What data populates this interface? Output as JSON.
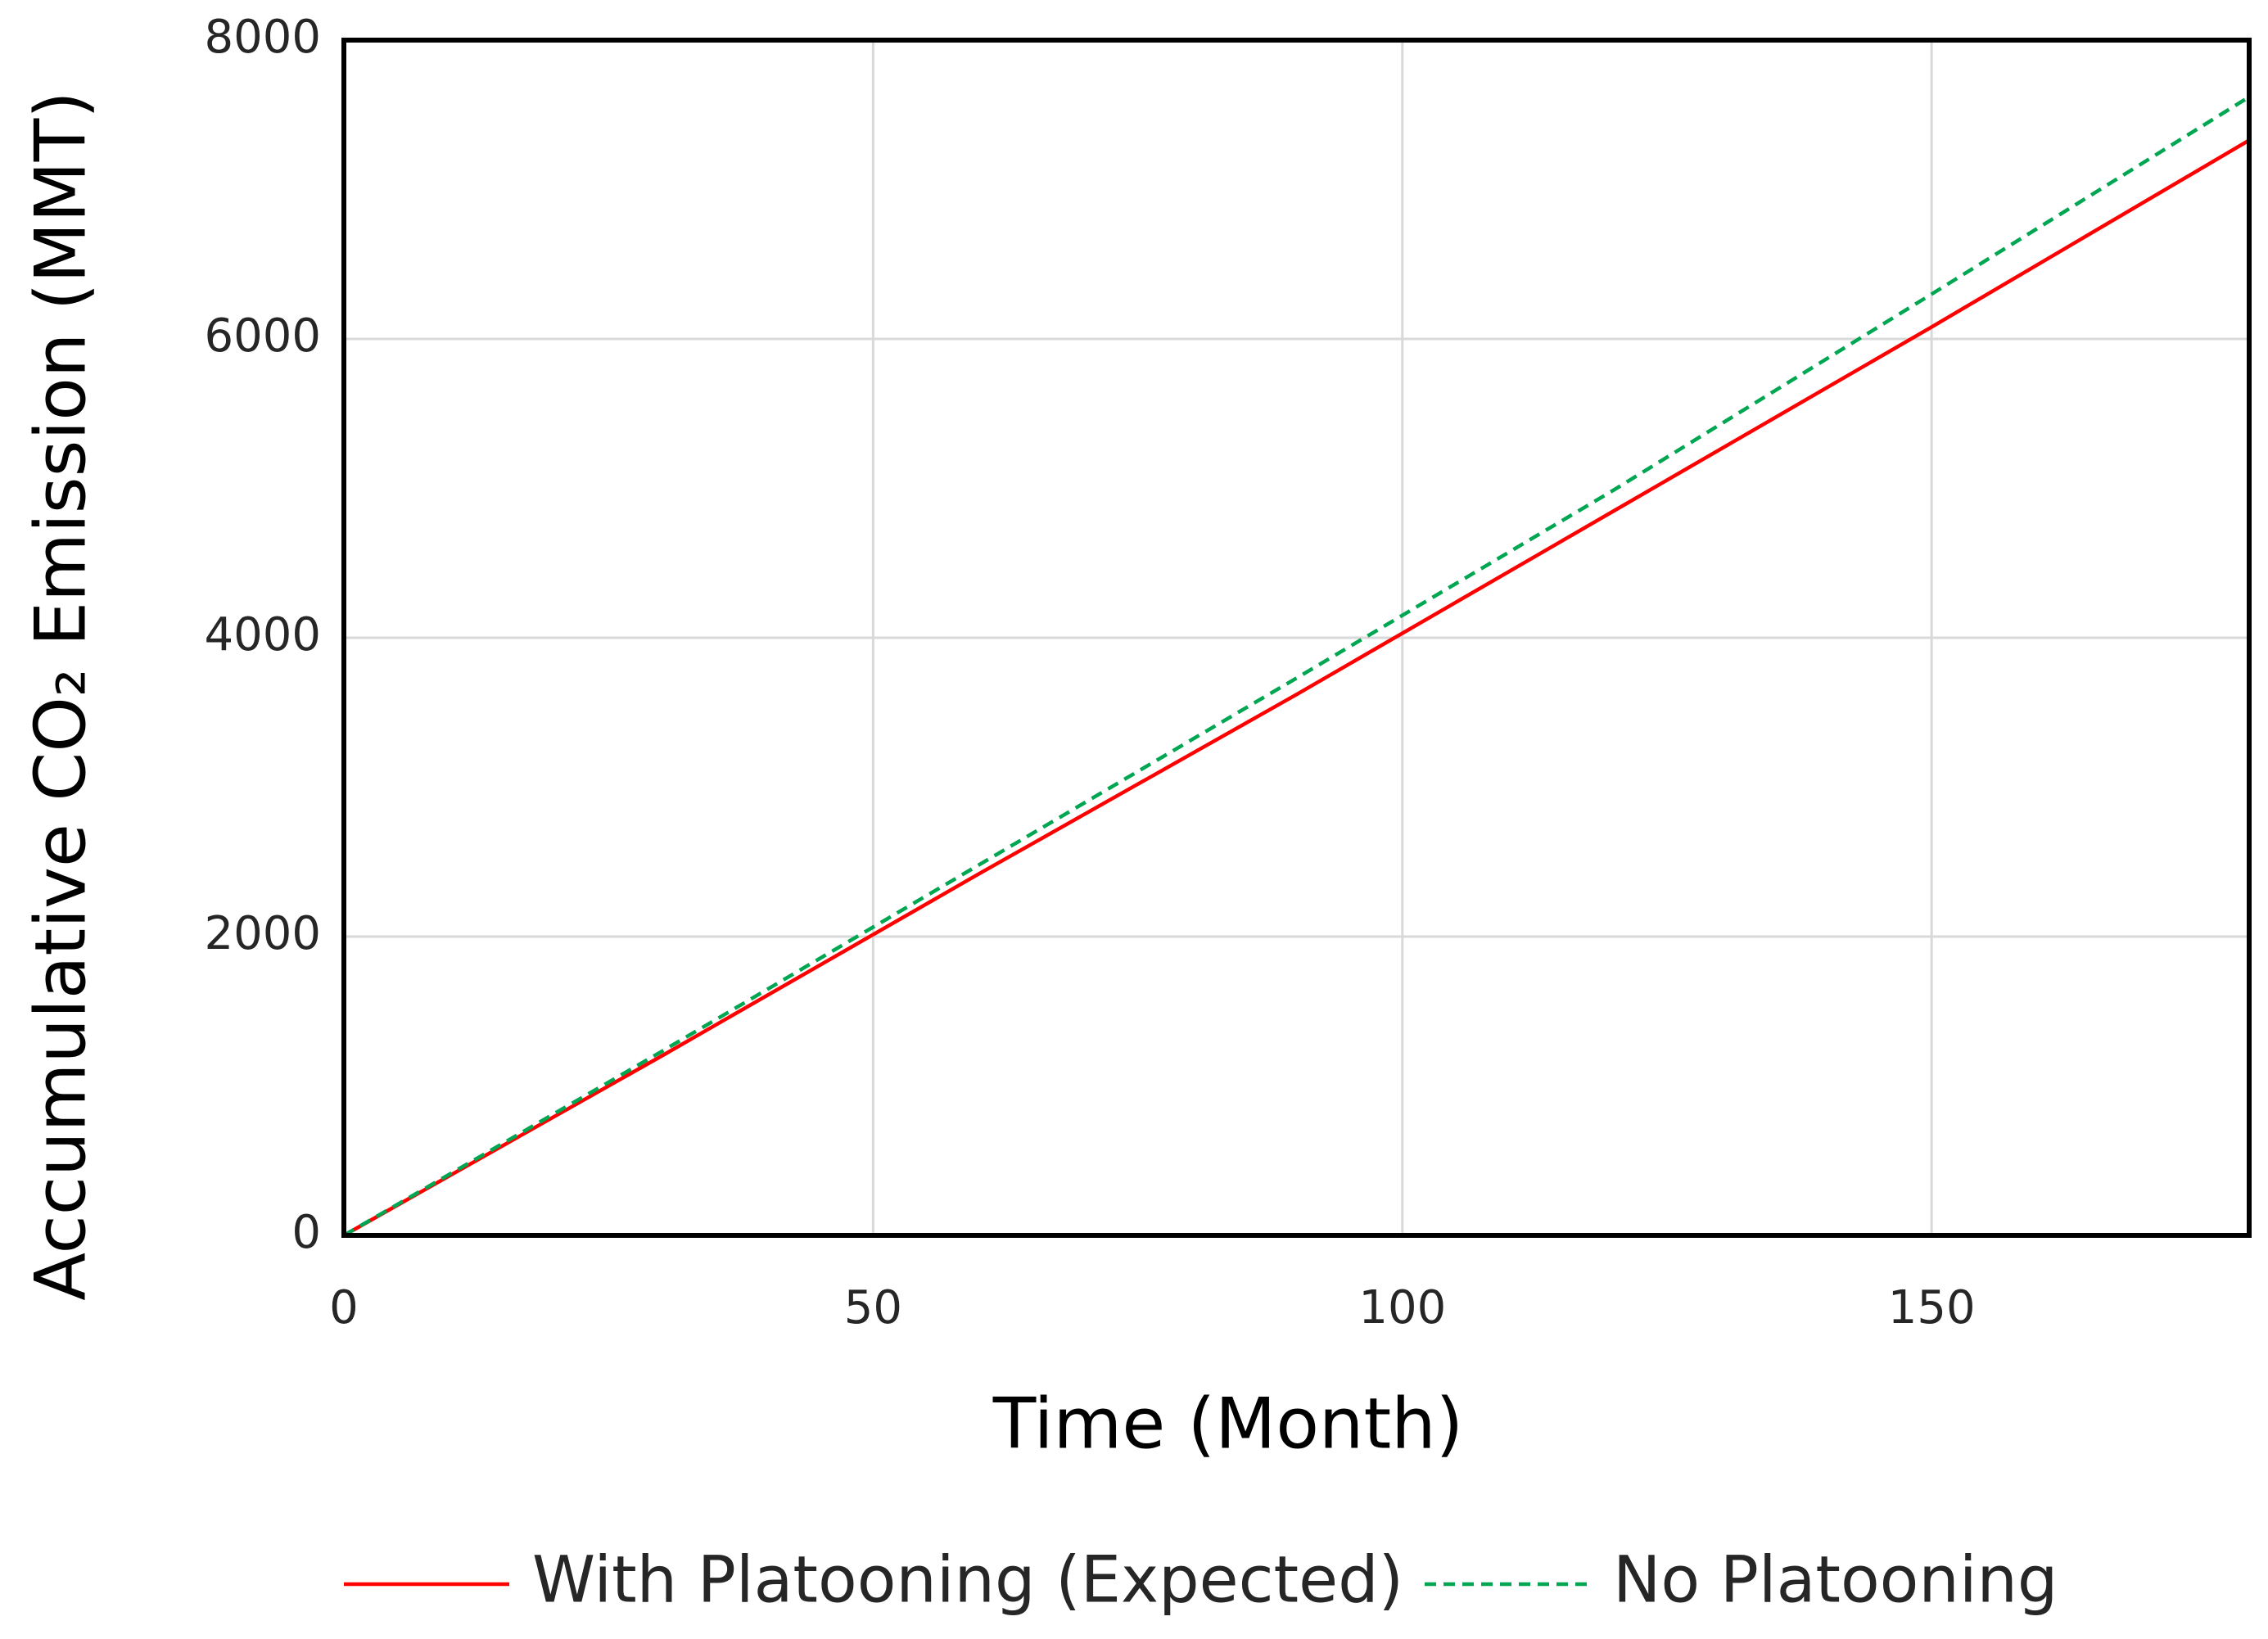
{
  "chart_data": {
    "type": "line",
    "x_label": "Time (Month)",
    "y_label": "Accumulative CO₂  Emission (MMT)",
    "x": [
      0,
      30,
      60,
      90,
      120,
      150,
      180
    ],
    "series": [
      {
        "name": "With Platooning (Expected)",
        "color": "#ff0000",
        "style": "solid",
        "values": [
          0,
          1200,
          2420,
          3620,
          4850,
          6080,
          7330
        ]
      },
      {
        "name": "No Platooning",
        "color": "#00a651",
        "style": "dashed",
        "values": [
          0,
          1230,
          2480,
          3730,
          4990,
          6300,
          7620
        ]
      }
    ],
    "xlim": [
      0,
      180
    ],
    "xticks": [
      0,
      50,
      100,
      150
    ],
    "ylim": [
      0,
      8000
    ],
    "yticks": [
      0,
      2000,
      4000,
      6000,
      8000
    ],
    "grid": true,
    "legend": "bottom"
  }
}
